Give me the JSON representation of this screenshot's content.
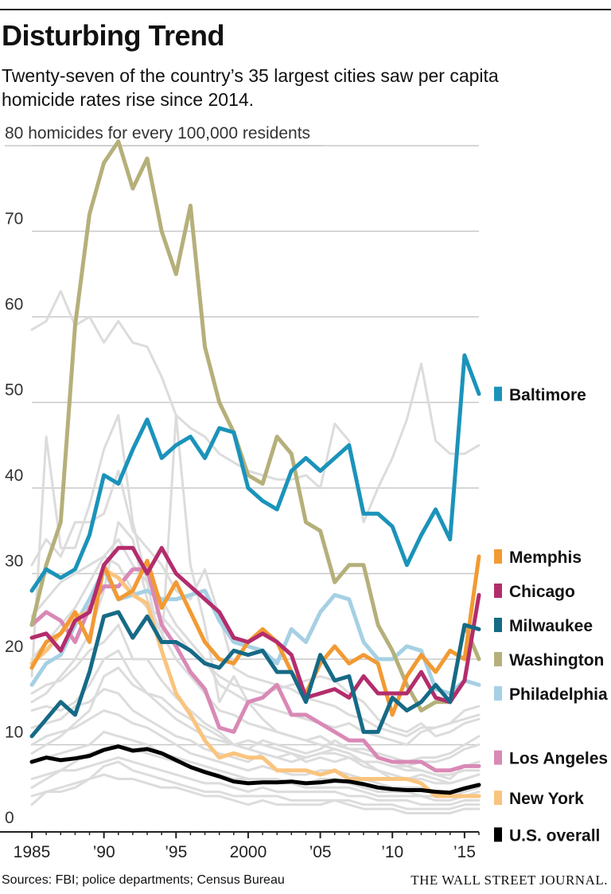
{
  "title": "Disturbing Trend",
  "subtitle": "Twenty-seven of the country’s 35 largest cities saw per capita homicide rates rise since 2014.",
  "source": "Sources: FBI; police departments; Census Bureau",
  "publisher": "THE WALL STREET JOURNAL.",
  "chart_data": {
    "type": "line",
    "ylabel": "80 homicides for every 100,000 residents",
    "ylim": [
      0,
      80
    ],
    "xlim": [
      1985,
      2016
    ],
    "y_ticks": [
      {
        "value": 0,
        "label": "0"
      },
      {
        "value": 10,
        "label": "10"
      },
      {
        "value": 20,
        "label": "20"
      },
      {
        "value": 30,
        "label": "30"
      },
      {
        "value": 40,
        "label": "40"
      },
      {
        "value": 50,
        "label": "50"
      },
      {
        "value": 60,
        "label": "60"
      },
      {
        "value": 70,
        "label": "70"
      }
    ],
    "x_ticks": [
      {
        "value": 1985,
        "label": "1985"
      },
      {
        "value": 1990,
        "label": "’90"
      },
      {
        "value": 1995,
        "label": "’95"
      },
      {
        "value": 2000,
        "label": "2000"
      },
      {
        "value": 2005,
        "label": "’05"
      },
      {
        "value": 2010,
        "label": "’10"
      },
      {
        "value": 2015,
        "label": "’15"
      }
    ],
    "grid": true,
    "background_color": "#dcdcdc",
    "x": [
      1985,
      1986,
      1987,
      1988,
      1989,
      1990,
      1991,
      1992,
      1993,
      1994,
      1995,
      1996,
      1997,
      1998,
      1999,
      2000,
      2001,
      2002,
      2003,
      2004,
      2005,
      2006,
      2007,
      2008,
      2009,
      2010,
      2011,
      2012,
      2013,
      2014,
      2015,
      2016
    ],
    "series": [
      {
        "name": "Washington",
        "color": "#b5b07a",
        "values": [
          24.0,
          31.0,
          36.0,
          59.0,
          72.0,
          78.0,
          80.5,
          75.0,
          78.5,
          70.0,
          65.0,
          73.0,
          56.5,
          50.0,
          46.5,
          41.5,
          40.5,
          46.0,
          44.0,
          36.0,
          35.0,
          29.0,
          31.0,
          31.0,
          24.0,
          21.0,
          17.0,
          14.0,
          15.0,
          15.0,
          24.0,
          20.0
        ]
      },
      {
        "name": "Baltimore",
        "color": "#1b93ba",
        "values": [
          28.0,
          30.5,
          29.5,
          30.5,
          34.5,
          41.5,
          40.5,
          44.5,
          48.0,
          43.5,
          45.0,
          46.0,
          43.5,
          47.0,
          46.5,
          40.0,
          38.5,
          37.5,
          42.0,
          43.5,
          42.0,
          43.5,
          45.0,
          37.0,
          37.0,
          35.5,
          31.0,
          34.5,
          37.5,
          34.0,
          55.5,
          51.0
        ]
      },
      {
        "name": "Memphis",
        "color": "#f29a33",
        "values": [
          19.0,
          22.0,
          23.0,
          25.5,
          22.0,
          31.0,
          27.0,
          28.0,
          31.5,
          26.0,
          29.0,
          25.5,
          22.0,
          20.0,
          19.5,
          22.0,
          23.5,
          22.0,
          18.5,
          16.0,
          19.5,
          21.5,
          19.5,
          20.5,
          19.5,
          13.5,
          18.0,
          20.5,
          18.5,
          21.0,
          20.0,
          32.0
        ]
      },
      {
        "name": "Chicago",
        "color": "#b32d6c",
        "values": [
          22.5,
          23.0,
          21.0,
          24.5,
          25.5,
          31.0,
          33.0,
          33.0,
          30.0,
          33.0,
          30.0,
          28.5,
          27.0,
          25.5,
          22.5,
          22.0,
          23.0,
          22.0,
          20.5,
          15.5,
          16.0,
          16.5,
          15.5,
          18.0,
          16.0,
          16.0,
          16.0,
          18.5,
          15.5,
          15.0,
          17.5,
          27.5
        ]
      },
      {
        "name": "Milwaukee",
        "color": "#166a86",
        "values": [
          11.0,
          13.0,
          15.0,
          13.5,
          18.5,
          25.0,
          25.5,
          22.5,
          25.0,
          22.0,
          22.0,
          21.0,
          19.5,
          19.0,
          21.0,
          20.5,
          21.0,
          18.5,
          18.5,
          15.0,
          20.5,
          17.5,
          18.0,
          11.5,
          11.5,
          15.5,
          14.0,
          15.0,
          17.0,
          15.0,
          24.0,
          23.5
        ]
      },
      {
        "name": "Philadelphia",
        "color": "#a6d0e4",
        "values": [
          17.0,
          19.5,
          20.5,
          24.0,
          27.0,
          30.5,
          27.0,
          27.5,
          28.0,
          27.0,
          27.0,
          27.5,
          28.0,
          24.5,
          22.0,
          21.5,
          21.0,
          19.5,
          23.5,
          22.0,
          25.5,
          27.5,
          27.0,
          22.0,
          20.0,
          20.0,
          21.5,
          21.0,
          16.5,
          16.0,
          17.5,
          17.0
        ]
      },
      {
        "name": "Los Angeles",
        "color": "#d989b6",
        "values": [
          24.0,
          25.5,
          24.5,
          22.0,
          26.0,
          28.5,
          28.5,
          30.5,
          30.5,
          24.0,
          21.5,
          18.5,
          16.5,
          12.0,
          11.5,
          15.0,
          15.5,
          17.0,
          13.5,
          13.5,
          12.5,
          11.5,
          10.5,
          10.5,
          8.5,
          8.0,
          8.0,
          8.0,
          7.0,
          7.0,
          7.5,
          7.5
        ]
      },
      {
        "name": "New York",
        "color": "#fac47e",
        "values": [
          19.5,
          21.0,
          23.0,
          25.0,
          25.5,
          30.5,
          29.5,
          27.5,
          26.5,
          21.0,
          16.0,
          13.5,
          10.5,
          8.5,
          9.0,
          8.5,
          8.5,
          7.0,
          7.0,
          7.0,
          6.5,
          7.0,
          6.0,
          6.0,
          6.0,
          6.0,
          6.0,
          5.5,
          4.0,
          4.0,
          4.0,
          4.0
        ]
      },
      {
        "name": "U.S. overall",
        "color": "#000000",
        "values": [
          8.0,
          8.5,
          8.2,
          8.4,
          8.7,
          9.4,
          9.8,
          9.3,
          9.5,
          9.0,
          8.2,
          7.4,
          6.8,
          6.3,
          5.7,
          5.5,
          5.6,
          5.6,
          5.7,
          5.5,
          5.6,
          5.8,
          5.7,
          5.4,
          5.0,
          4.8,
          4.7,
          4.7,
          4.5,
          4.4,
          4.9,
          5.3
        ]
      }
    ],
    "legend_placement": "right",
    "legend": [
      {
        "label": "Baltimore",
        "color": "#1b93ba",
        "value": 51.0
      },
      {
        "label": "Memphis",
        "color": "#f29a33",
        "value": 32.0
      },
      {
        "label": "Chicago",
        "color": "#b32d6c",
        "value": 28.0
      },
      {
        "label": "Milwaukee",
        "color": "#166a86",
        "value": 24.0
      },
      {
        "label": "Washington",
        "color": "#b5b07a",
        "value": 20.0
      },
      {
        "label": "Philadelphia",
        "color": "#a6d0e4",
        "value": 16.0
      },
      {
        "label": "Los Angeles",
        "color": "#d989b6",
        "value": 8.5
      },
      {
        "label": "New York",
        "color": "#fac47e",
        "value": 3.8
      },
      {
        "label": "U.S. overall",
        "color": "#000000",
        "value": -0.5
      }
    ],
    "other_cities": [
      [
        58.5,
        59.5,
        63.0,
        59.0,
        60.0,
        57.0,
        59.5,
        57.0,
        56.5,
        53.0,
        48.5,
        47.0,
        46.0,
        44.0,
        43.0,
        42.0,
        41.5,
        41.0,
        41.0,
        41.5,
        40.0,
        47.5,
        45.5,
        36.0,
        40.0,
        43.5,
        48.0,
        54.5,
        45.5,
        44.0,
        44.0,
        45.0
      ],
      [
        18.0,
        46.0,
        33.0,
        33.0,
        38.0,
        44.5,
        48.5,
        36.0,
        29.0,
        21.0,
        48.5,
        31.0,
        24.0,
        15.0,
        18.0,
        15.0,
        13.0,
        11.5,
        11.0,
        10.5,
        10.0,
        9.5,
        9.0,
        8.0,
        8.0,
        7.5,
        7.5,
        7.0,
        6.5,
        6.5,
        7.0,
        7.0
      ],
      [
        31.0,
        34.0,
        32.0,
        36.0,
        36.0,
        37.0,
        42.0,
        35.0,
        33.0,
        31.0,
        28.0,
        27.0,
        30.5,
        25.0,
        19.0,
        18.0,
        17.5,
        17.0,
        16.5,
        15.5,
        15.0,
        14.5,
        13.5,
        13.0,
        12.0,
        11.5,
        11.0,
        12.0,
        12.0,
        12.5,
        14.0,
        14.5
      ],
      [
        16.0,
        17.0,
        17.5,
        19.0,
        21.0,
        22.0,
        24.0,
        20.0,
        20.0,
        17.5,
        15.5,
        14.0,
        12.5,
        11.5,
        10.0,
        9.5,
        9.0,
        8.5,
        9.0,
        8.0,
        8.5,
        8.0,
        8.5,
        7.5,
        7.0,
        6.0,
        6.0,
        6.5,
        6.0,
        5.5,
        6.0,
        6.5
      ],
      [
        14.0,
        14.5,
        14.0,
        15.0,
        17.0,
        20.0,
        21.0,
        18.0,
        16.0,
        15.5,
        14.0,
        13.0,
        12.0,
        11.0,
        10.0,
        10.5,
        10.0,
        9.5,
        9.0,
        8.5,
        9.0,
        9.5,
        9.0,
        8.0,
        8.0,
        7.5,
        7.0,
        7.0,
        6.5,
        6.0,
        7.5,
        8.0
      ],
      [
        12.0,
        12.5,
        13.0,
        14.5,
        15.0,
        16.5,
        16.0,
        14.0,
        13.0,
        12.0,
        11.0,
        10.5,
        9.5,
        9.0,
        8.5,
        8.0,
        9.0,
        8.5,
        8.0,
        8.5,
        9.0,
        9.0,
        8.5,
        8.0,
        7.0,
        6.5,
        6.0,
        6.0,
        5.5,
        5.5,
        6.0,
        6.5
      ],
      [
        10.0,
        11.0,
        11.5,
        12.0,
        13.0,
        14.0,
        13.5,
        12.5,
        12.0,
        11.0,
        10.0,
        9.0,
        8.5,
        8.0,
        7.5,
        7.0,
        7.5,
        7.0,
        6.5,
        6.5,
        7.0,
        7.0,
        6.5,
        6.0,
        5.5,
        5.0,
        5.0,
        5.0,
        4.5,
        4.5,
        5.0,
        5.5
      ],
      [
        8.0,
        8.5,
        9.0,
        9.5,
        10.0,
        11.5,
        11.0,
        10.5,
        10.0,
        9.0,
        8.5,
        8.0,
        7.5,
        7.0,
        6.5,
        6.0,
        6.0,
        6.0,
        5.5,
        5.5,
        6.0,
        6.0,
        5.5,
        5.0,
        4.5,
        4.5,
        4.5,
        4.0,
        4.0,
        4.0,
        4.5,
        5.0
      ],
      [
        6.0,
        6.5,
        7.0,
        7.0,
        7.5,
        8.0,
        8.5,
        8.0,
        7.5,
        7.0,
        6.5,
        6.0,
        5.5,
        5.5,
        5.0,
        4.5,
        5.0,
        4.5,
        4.5,
        4.5,
        4.5,
        4.5,
        4.0,
        4.0,
        3.5,
        3.5,
        3.5,
        3.0,
        3.0,
        3.0,
        3.5,
        3.5
      ],
      [
        20.0,
        22.0,
        24.0,
        26.0,
        29.0,
        32.0,
        34.0,
        31.0,
        29.0,
        27.0,
        24.0,
        22.0,
        20.0,
        17.0,
        16.0,
        15.0,
        14.5,
        14.0,
        13.5,
        13.0,
        12.5,
        12.0,
        12.5,
        11.5,
        11.0,
        10.5,
        10.0,
        11.5,
        12.0,
        12.5,
        13.0,
        13.5
      ],
      [
        15.0,
        16.0,
        18.0,
        20.0,
        23.0,
        28.0,
        36.0,
        34.0,
        27.0,
        23.0,
        20.0,
        18.0,
        16.0,
        14.0,
        13.5,
        12.5,
        12.0,
        11.5,
        11.0,
        10.5,
        11.0,
        10.0,
        9.5,
        9.5,
        9.0,
        8.5,
        8.0,
        8.5,
        8.5,
        9.0,
        10.0,
        11.0
      ],
      [
        5.0,
        6.0,
        7.0,
        8.0,
        9.0,
        9.5,
        10.0,
        9.5,
        9.0,
        8.5,
        8.0,
        7.5,
        7.0,
        6.5,
        6.0,
        6.0,
        6.0,
        5.5,
        5.5,
        5.0,
        5.0,
        5.0,
        5.0,
        4.5,
        4.0,
        4.0,
        4.0,
        4.0,
        3.5,
        3.5,
        4.0,
        4.5
      ],
      [
        3.0,
        4.5,
        4.5,
        5.0,
        6.0,
        6.5,
        6.0,
        6.0,
        5.5,
        5.0,
        5.0,
        4.5,
        4.0,
        4.0,
        3.5,
        3.0,
        3.5,
        3.0,
        3.0,
        3.0,
        3.0,
        3.5,
        3.0,
        2.5,
        2.5,
        2.5,
        2.0,
        2.0,
        2.0,
        2.0,
        2.5,
        2.5
      ],
      [
        9.0,
        10.0,
        11.0,
        12.5,
        14.0,
        18.0,
        19.0,
        17.0,
        16.0,
        14.5,
        13.0,
        12.0,
        11.0,
        10.5,
        10.0,
        9.5,
        10.5,
        10.0,
        9.5,
        9.0,
        9.5,
        10.5,
        9.5,
        9.0,
        8.5,
        8.0,
        7.5,
        8.0,
        8.0,
        8.5,
        9.5,
        10.0
      ],
      [
        25.0,
        27.0,
        29.0,
        30.0,
        31.0,
        32.0,
        31.0,
        28.0,
        26.0,
        25.0,
        23.0,
        21.0,
        19.5,
        18.0,
        17.0,
        16.5,
        16.0,
        16.5,
        17.0,
        17.5,
        18.0,
        17.5,
        16.0,
        15.0,
        13.0,
        12.0,
        11.5,
        12.5,
        11.0,
        11.5,
        12.5,
        13.0
      ],
      [
        4.0,
        4.5,
        5.0,
        5.5,
        6.0,
        7.5,
        8.0,
        7.0,
        6.5,
        6.0,
        5.5,
        5.0,
        4.5,
        4.5,
        4.0,
        4.0,
        4.0,
        4.0,
        3.5,
        3.5,
        3.5,
        3.5,
        3.5,
        3.0,
        3.0,
        3.0,
        2.5,
        2.5,
        2.5,
        2.5,
        3.0,
        3.0
      ]
    ]
  }
}
